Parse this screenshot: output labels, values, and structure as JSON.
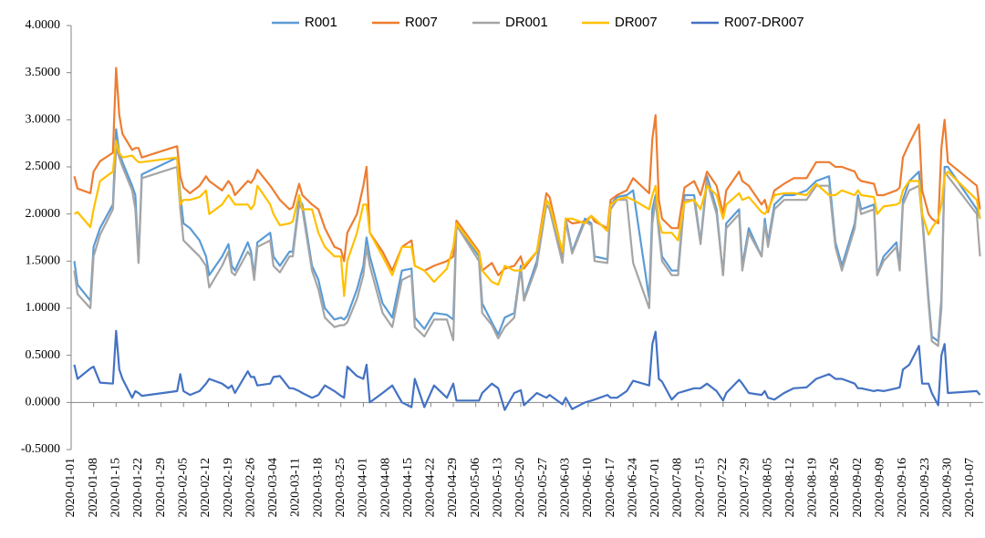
{
  "chart_data": {
    "type": "line",
    "legend": "top",
    "xlim": [
      "2020-01-01",
      "2020-10-11"
    ],
    "ylim": [
      -0.5,
      4
    ],
    "yticks": [
      {
        "value": -0.5,
        "label": "-0.5000"
      },
      {
        "value": 0,
        "label": "0.0000"
      },
      {
        "value": 0.5,
        "label": "0.5000"
      },
      {
        "value": 1,
        "label": "1.0000"
      },
      {
        "value": 1.5,
        "label": "1.5000"
      },
      {
        "value": 2,
        "label": "2.0000"
      },
      {
        "value": 2.5,
        "label": "2.5000"
      },
      {
        "value": 3,
        "label": "3.0000"
      },
      {
        "value": 3.5,
        "label": "3.5000"
      },
      {
        "value": 4,
        "label": "4.0000"
      }
    ],
    "xticks": [
      "2020-01-01",
      "2020-01-08",
      "2020-01-15",
      "2020-01-22",
      "2020-01-29",
      "2020-02-05",
      "2020-02-12",
      "2020-02-19",
      "2020-02-26",
      "2020-03-04",
      "2020-03-11",
      "2020-03-18",
      "2020-03-25",
      "2020-04-01",
      "2020-04-08",
      "2020-04-15",
      "2020-04-22",
      "2020-04-29",
      "2020-05-06",
      "2020-05-13",
      "2020-05-20",
      "2020-05-27",
      "2020-06-03",
      "2020-06-10",
      "2020-06-17",
      "2020-06-24",
      "2020-07-01",
      "2020-07-08",
      "2020-07-15",
      "2020-07-22",
      "2020-07-29",
      "2020-08-05",
      "2020-08-12",
      "2020-08-19",
      "2020-08-26",
      "2020-09-02",
      "2020-09-09",
      "2020-09-16",
      "2020-09-23",
      "2020-09-30",
      "2020-10-07"
    ],
    "x": [
      "2020-01-02",
      "2020-01-03",
      "2020-01-07",
      "2020-01-08",
      "2020-01-10",
      "2020-01-14",
      "2020-01-15",
      "2020-01-16",
      "2020-01-17",
      "2020-01-20",
      "2020-01-21",
      "2020-01-22",
      "2020-01-23",
      "2020-02-03",
      "2020-02-04",
      "2020-02-05",
      "2020-02-07",
      "2020-02-10",
      "2020-02-12",
      "2020-02-13",
      "2020-02-17",
      "2020-02-19",
      "2020-02-20",
      "2020-02-21",
      "2020-02-25",
      "2020-02-26",
      "2020-02-27",
      "2020-02-28",
      "2020-03-03",
      "2020-03-04",
      "2020-03-06",
      "2020-03-09",
      "2020-03-10",
      "2020-03-12",
      "2020-03-13",
      "2020-03-16",
      "2020-03-18",
      "2020-03-20",
      "2020-03-23",
      "2020-03-25",
      "2020-03-26",
      "2020-03-27",
      "2020-03-30",
      "2020-04-01",
      "2020-04-02",
      "2020-04-03",
      "2020-04-07",
      "2020-04-10",
      "2020-04-13",
      "2020-04-16",
      "2020-04-17",
      "2020-04-20",
      "2020-04-23",
      "2020-04-27",
      "2020-04-29",
      "2020-04-30",
      "2020-05-07",
      "2020-05-08",
      "2020-05-11",
      "2020-05-13",
      "2020-05-15",
      "2020-05-18",
      "2020-05-20",
      "2020-05-21",
      "2020-05-25",
      "2020-05-28",
      "2020-05-29",
      "2020-06-02",
      "2020-06-03",
      "2020-06-05",
      "2020-06-09",
      "2020-06-11",
      "2020-06-12",
      "2020-06-16",
      "2020-06-17",
      "2020-06-19",
      "2020-06-22",
      "2020-06-24",
      "2020-06-29",
      "2020-06-30",
      "2020-07-01",
      "2020-07-02",
      "2020-07-03",
      "2020-07-06",
      "2020-07-08",
      "2020-07-10",
      "2020-07-13",
      "2020-07-15",
      "2020-07-17",
      "2020-07-20",
      "2020-07-22",
      "2020-07-23",
      "2020-07-27",
      "2020-07-28",
      "2020-07-30",
      "2020-08-03",
      "2020-08-04",
      "2020-08-05",
      "2020-08-07",
      "2020-08-10",
      "2020-08-13",
      "2020-08-17",
      "2020-08-20",
      "2020-08-24",
      "2020-08-26",
      "2020-08-28",
      "2020-09-01",
      "2020-09-02",
      "2020-09-03",
      "2020-09-07",
      "2020-09-08",
      "2020-09-10",
      "2020-09-14",
      "2020-09-15",
      "2020-09-16",
      "2020-09-18",
      "2020-09-21",
      "2020-09-22",
      "2020-09-24",
      "2020-09-25",
      "2020-09-27",
      "2020-09-28",
      "2020-09-29",
      "2020-09-30",
      "2020-10-09",
      "2020-10-10"
    ],
    "series": [
      {
        "name": "R001",
        "color": "#5b9bd5",
        "values": [
          1.5,
          1.25,
          1.08,
          1.65,
          1.85,
          2.1,
          2.9,
          2.65,
          2.55,
          2.3,
          2.2,
          1.5,
          2.42,
          2.6,
          2.2,
          1.9,
          1.85,
          1.72,
          1.55,
          1.35,
          1.55,
          1.68,
          1.45,
          1.4,
          1.7,
          1.6,
          1.35,
          1.7,
          1.8,
          1.55,
          1.45,
          1.6,
          1.6,
          2.15,
          2.1,
          1.45,
          1.3,
          1.0,
          0.88,
          0.9,
          0.88,
          0.92,
          1.2,
          1.45,
          1.75,
          1.55,
          1.05,
          0.9,
          1.4,
          1.42,
          0.9,
          0.78,
          0.95,
          0.93,
          0.88,
          1.9,
          1.55,
          1.05,
          0.85,
          0.72,
          0.9,
          0.95,
          1.45,
          1.1,
          1.5,
          2.15,
          2.1,
          1.5,
          1.95,
          1.6,
          1.95,
          1.9,
          1.55,
          1.52,
          2.1,
          2.18,
          2.2,
          2.25,
          1.1,
          2.05,
          2.2,
          1.85,
          1.55,
          1.4,
          1.4,
          2.2,
          2.2,
          1.7,
          2.4,
          2.05,
          1.35,
          1.9,
          2.05,
          1.45,
          1.85,
          1.55,
          1.95,
          1.7,
          2.1,
          2.2,
          2.2,
          2.25,
          2.35,
          2.4,
          1.7,
          1.45,
          1.9,
          2.2,
          2.05,
          2.1,
          1.35,
          1.55,
          1.7,
          1.45,
          2.15,
          2.35,
          2.45,
          2.0,
          1.1,
          0.7,
          0.65,
          1.1,
          2.5,
          2.5,
          2.05,
          1.95
        ]
      },
      {
        "name": "R007",
        "color": "#ed7d31",
        "values": [
          2.4,
          2.27,
          2.22,
          2.45,
          2.56,
          2.65,
          3.55,
          3.05,
          2.85,
          2.68,
          2.7,
          2.7,
          2.6,
          2.72,
          2.4,
          2.28,
          2.22,
          2.3,
          2.4,
          2.35,
          2.25,
          2.35,
          2.3,
          2.2,
          2.35,
          2.33,
          2.38,
          2.47,
          2.3,
          2.25,
          2.15,
          2.05,
          2.07,
          2.32,
          2.2,
          2.1,
          2.05,
          1.85,
          1.65,
          1.62,
          1.5,
          1.8,
          2.0,
          2.3,
          2.5,
          1.8,
          1.6,
          1.4,
          1.65,
          1.72,
          1.45,
          1.4,
          1.45,
          1.5,
          1.55,
          1.93,
          1.6,
          1.4,
          1.48,
          1.35,
          1.42,
          1.45,
          1.55,
          1.42,
          1.6,
          2.22,
          2.18,
          1.58,
          1.95,
          1.9,
          1.92,
          1.98,
          1.92,
          1.85,
          2.15,
          2.2,
          2.25,
          2.38,
          2.22,
          2.8,
          3.05,
          2.15,
          1.95,
          1.85,
          1.85,
          2.28,
          2.35,
          2.2,
          2.45,
          2.3,
          2.0,
          2.25,
          2.45,
          2.35,
          2.3,
          2.1,
          2.15,
          2.02,
          2.25,
          2.32,
          2.38,
          2.38,
          2.55,
          2.55,
          2.5,
          2.5,
          2.45,
          2.38,
          2.35,
          2.32,
          2.2,
          2.2,
          2.25,
          2.28,
          2.6,
          2.75,
          2.95,
          2.25,
          2.0,
          1.95,
          1.9,
          2.7,
          3.0,
          2.55,
          2.3,
          2.05
        ]
      },
      {
        "name": "DR001",
        "color": "#a5a5a5",
        "values": [
          1.4,
          1.15,
          1.0,
          1.55,
          1.78,
          2.05,
          2.7,
          2.6,
          2.5,
          2.25,
          2.05,
          1.48,
          2.38,
          2.5,
          2.05,
          1.72,
          1.65,
          1.55,
          1.45,
          1.22,
          1.45,
          1.6,
          1.38,
          1.35,
          1.6,
          1.55,
          1.3,
          1.65,
          1.72,
          1.45,
          1.38,
          1.55,
          1.55,
          2.1,
          2.05,
          1.4,
          1.2,
          0.9,
          0.8,
          0.82,
          0.82,
          0.85,
          1.1,
          1.35,
          1.65,
          1.45,
          0.95,
          0.8,
          1.3,
          1.35,
          0.8,
          0.7,
          0.88,
          0.88,
          0.66,
          1.88,
          1.5,
          0.95,
          0.82,
          0.68,
          0.8,
          0.9,
          1.42,
          1.08,
          1.45,
          2.1,
          2.05,
          1.48,
          1.92,
          1.58,
          1.92,
          1.88,
          1.5,
          1.48,
          2.05,
          2.15,
          2.15,
          1.48,
          1.0,
          1.9,
          2.15,
          1.8,
          1.5,
          1.35,
          1.35,
          2.15,
          2.15,
          1.68,
          2.35,
          2.0,
          1.35,
          1.85,
          2.0,
          1.4,
          1.8,
          1.55,
          1.9,
          1.65,
          2.05,
          2.15,
          2.15,
          2.15,
          2.3,
          2.3,
          1.65,
          1.4,
          1.85,
          2.15,
          2.0,
          2.05,
          1.35,
          1.5,
          1.65,
          1.4,
          2.1,
          2.25,
          2.3,
          1.95,
          1.05,
          0.65,
          0.6,
          1.0,
          2.45,
          2.4,
          2.0,
          1.55
        ]
      },
      {
        "name": "DR007",
        "color": "#ffc000",
        "values": [
          2.0,
          2.02,
          1.86,
          2.05,
          2.35,
          2.45,
          2.78,
          2.65,
          2.6,
          2.62,
          2.58,
          2.55,
          2.55,
          2.6,
          2.1,
          2.15,
          2.15,
          2.18,
          2.25,
          2.0,
          2.1,
          2.2,
          2.15,
          2.1,
          2.1,
          2.05,
          2.1,
          2.3,
          2.1,
          2.0,
          1.88,
          1.9,
          1.92,
          2.2,
          2.05,
          2.05,
          1.8,
          1.65,
          1.55,
          1.55,
          1.13,
          1.5,
          1.8,
          2.1,
          2.1,
          1.8,
          1.55,
          1.35,
          1.65,
          1.65,
          1.45,
          1.4,
          1.28,
          1.42,
          1.65,
          1.9,
          1.58,
          1.4,
          1.28,
          1.25,
          1.45,
          1.4,
          1.4,
          1.45,
          1.6,
          2.15,
          2.1,
          1.6,
          1.95,
          1.95,
          1.9,
          1.98,
          1.95,
          1.82,
          2.1,
          2.15,
          2.18,
          2.15,
          2.05,
          2.2,
          2.3,
          1.93,
          1.8,
          1.8,
          1.72,
          2.12,
          2.15,
          2.05,
          2.3,
          2.2,
          1.95,
          2.1,
          2.22,
          2.15,
          2.18,
          2.02,
          2.0,
          2.05,
          2.2,
          2.22,
          2.22,
          2.2,
          2.32,
          2.2,
          2.2,
          2.25,
          2.2,
          2.25,
          2.2,
          2.18,
          2.0,
          2.08,
          2.1,
          2.12,
          2.25,
          2.35,
          2.35,
          2.0,
          1.78,
          1.85,
          1.95,
          2.1,
          2.4,
          2.45,
          2.15,
          1.95
        ]
      },
      {
        "name": "R007-DR007",
        "color": "#4472c4",
        "values": [
          0.4,
          0.25,
          0.36,
          0.38,
          0.21,
          0.2,
          0.76,
          0.35,
          0.25,
          0.05,
          0.12,
          0.1,
          0.07,
          0.12,
          0.3,
          0.12,
          0.08,
          0.12,
          0.2,
          0.25,
          0.2,
          0.15,
          0.18,
          0.1,
          0.33,
          0.27,
          0.27,
          0.18,
          0.2,
          0.27,
          0.28,
          0.15,
          0.15,
          0.12,
          0.1,
          0.05,
          0.08,
          0.18,
          0.12,
          0.07,
          0.05,
          0.38,
          0.28,
          0.25,
          0.4,
          0.0,
          0.1,
          0.18,
          0.0,
          -0.05,
          0.25,
          -0.05,
          0.18,
          0.05,
          0.2,
          0.02,
          0.02,
          0.1,
          0.2,
          0.15,
          -0.08,
          0.1,
          0.13,
          -0.03,
          0.1,
          0.05,
          0.08,
          -0.02,
          0.05,
          -0.07,
          0.0,
          0.02,
          0.03,
          0.08,
          0.05,
          0.05,
          0.12,
          0.23,
          0.18,
          0.62,
          0.75,
          0.25,
          0.22,
          0.03,
          0.1,
          0.12,
          0.15,
          0.15,
          0.2,
          0.12,
          0.02,
          0.1,
          0.24,
          0.2,
          0.1,
          0.08,
          0.12,
          0.05,
          0.03,
          0.1,
          0.15,
          0.16,
          0.25,
          0.3,
          0.25,
          0.25,
          0.2,
          0.15,
          0.15,
          0.12,
          0.13,
          0.12,
          0.15,
          0.16,
          0.35,
          0.4,
          0.6,
          0.2,
          0.2,
          0.1,
          -0.03,
          0.5,
          0.62,
          0.1,
          0.12,
          0.08
        ]
      }
    ]
  }
}
